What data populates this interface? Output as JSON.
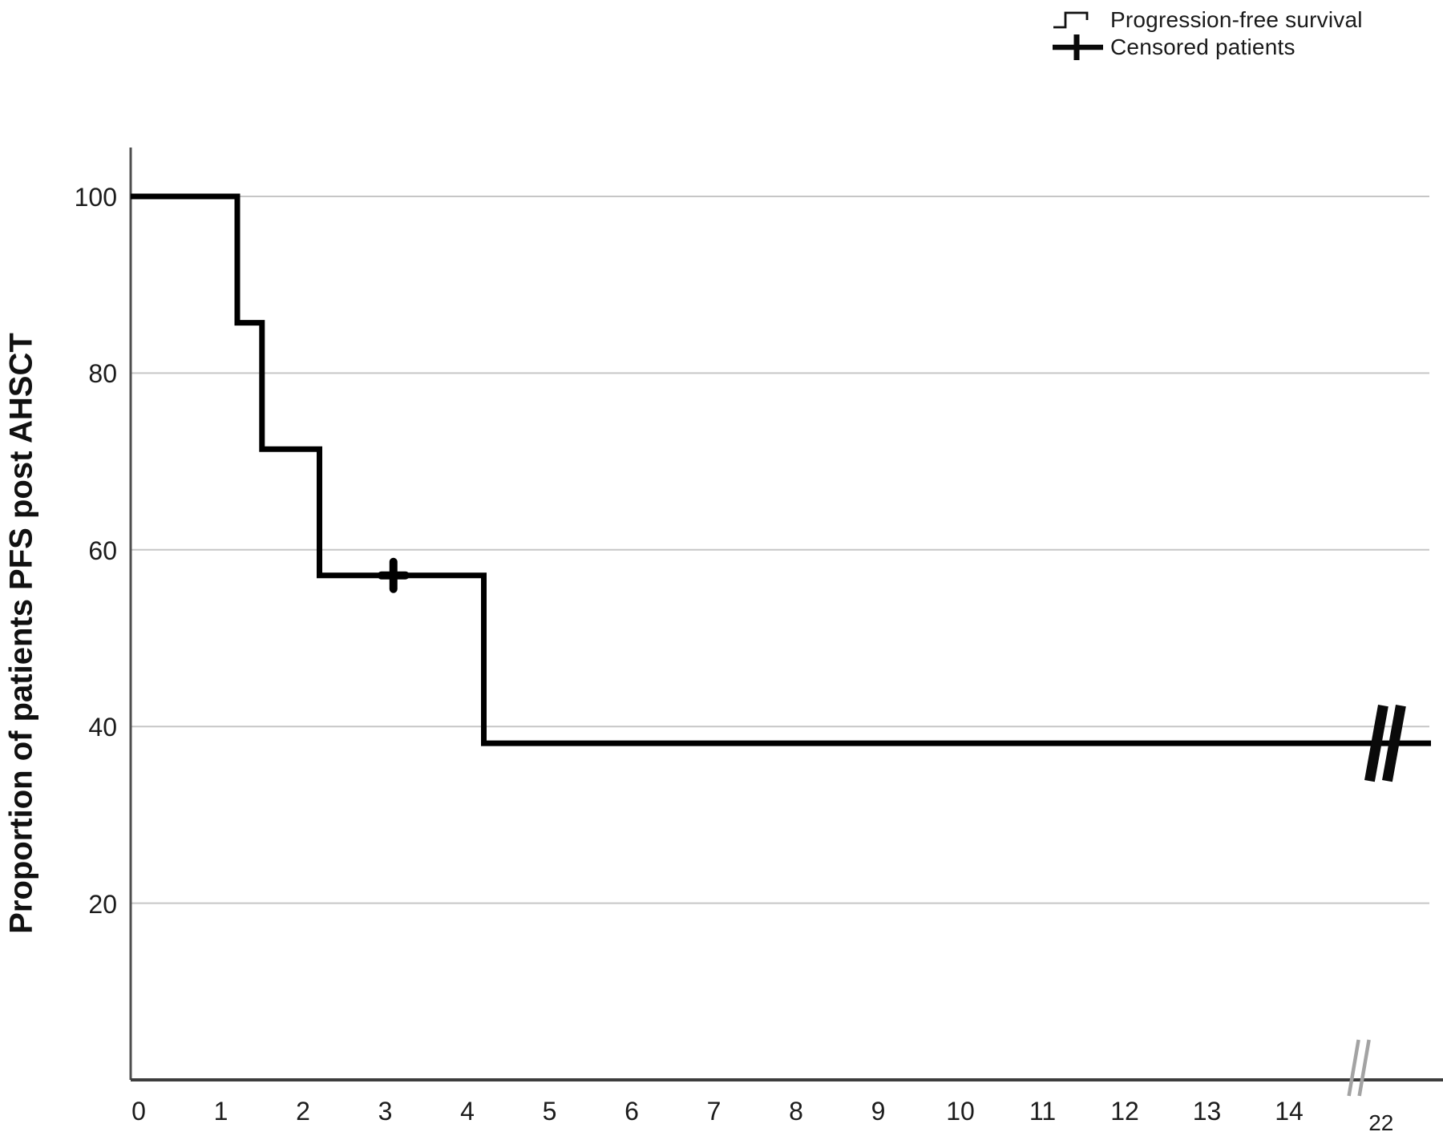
{
  "figure": {
    "background": "#ffffff"
  },
  "legend": {
    "items": [
      {
        "label": "Progression-free survival",
        "marker": "step-line"
      },
      {
        "label": "Censored patients",
        "marker": "plus-cross"
      }
    ]
  },
  "colors": {
    "curve": "#000000",
    "grid": "#c6c6c6",
    "y_axis": "#4f4f4f",
    "x_axis": "#3d3d3d",
    "text": "#1c1c1c",
    "axis_break": "#a3a3a3",
    "curve_break": "#0a0a0a"
  },
  "chart_data": {
    "type": "line",
    "subtype": "kaplan_meier_step",
    "title": "",
    "xlabel": "",
    "ylabel": "Proportion of patients PFS post AHSCT",
    "grid": "horizontal-only",
    "legend_position": "top-right",
    "xlim": [
      0,
      15.9
    ],
    "ylim": [
      0,
      105.5
    ],
    "x_tick_labels": [
      "0",
      "1",
      "2",
      "3",
      "4",
      "5",
      "6",
      "7",
      "8",
      "9",
      "10",
      "11",
      "12",
      "13",
      "14"
    ],
    "x_tick_values": [
      0,
      1,
      2,
      3,
      4,
      5,
      6,
      7,
      8,
      9,
      10,
      11,
      12,
      13,
      14
    ],
    "x_break_tick": {
      "label": "22",
      "t": 15.12
    },
    "y_tick_values": [
      100,
      80,
      60,
      40,
      20
    ],
    "series": [
      {
        "name": "Progression-free survival",
        "color": "#000000",
        "start_value": 100,
        "drops": [
          {
            "t": 1.2,
            "to": 85.7
          },
          {
            "t": 1.5,
            "to": 71.4
          },
          {
            "t": 2.2,
            "to": 57.1
          },
          {
            "t": 4.2,
            "to": 38.1
          }
        ],
        "final_value": 38.1,
        "curve_end_t": 15.73
      }
    ],
    "censored": [
      {
        "t": 3.1,
        "value": 57.1
      }
    ],
    "axis_breaks": {
      "x_axis_break_t": 14.85,
      "curve_break_t": 15.17
    }
  }
}
